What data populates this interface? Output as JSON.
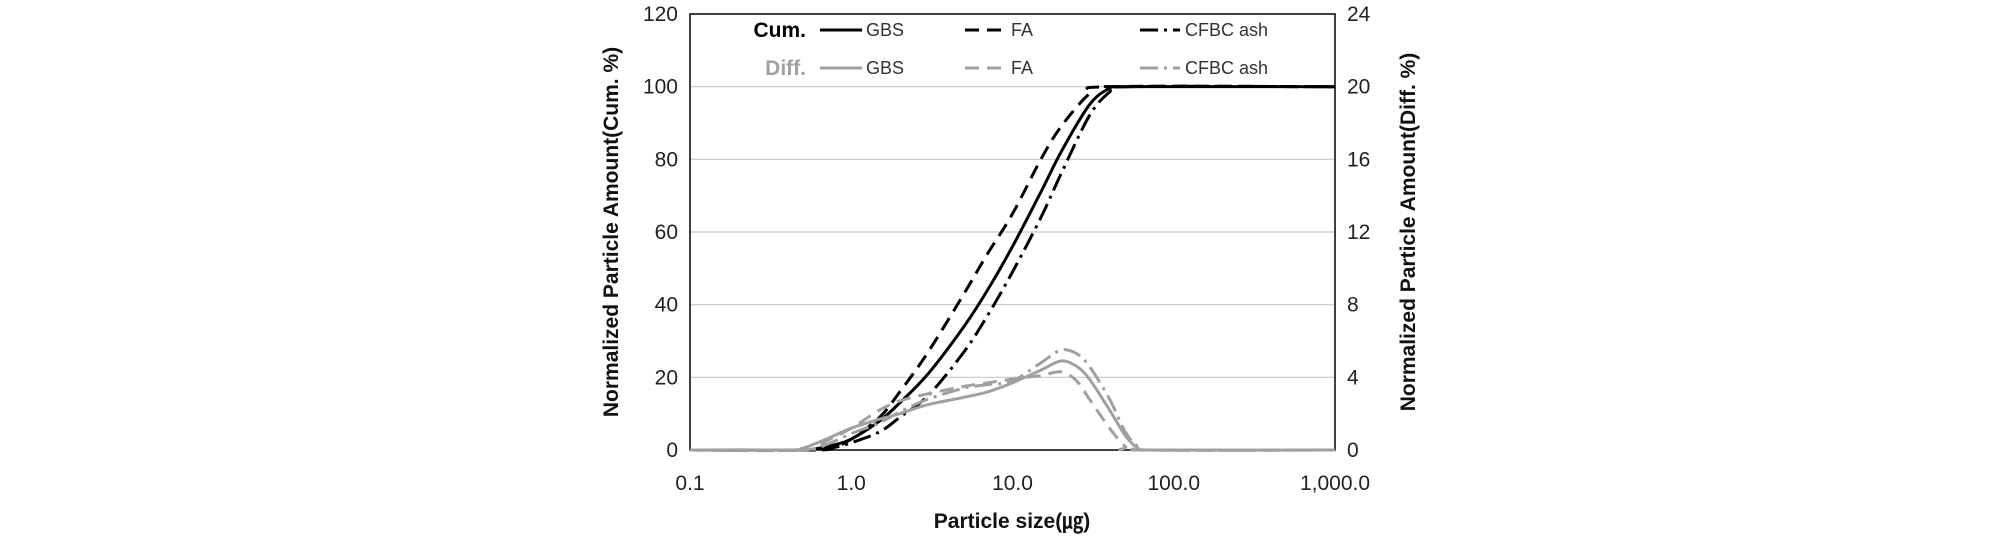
{
  "chart_data": {
    "type": "line",
    "xscale": "log",
    "xlim": [
      0.1,
      1000
    ],
    "x_ticks": [
      0.1,
      1,
      10,
      100,
      1000
    ],
    "x_tick_labels": [
      "0.1",
      "1.0",
      "10.0",
      "100.0",
      "1,000.0"
    ],
    "ylim_left": [
      0,
      120
    ],
    "y_ticks_left": [
      0,
      20,
      40,
      60,
      80,
      100,
      120
    ],
    "y_tick_labels_left": [
      "0",
      "20",
      "40",
      "60",
      "80",
      "100",
      "120"
    ],
    "ylim_right": [
      0,
      24
    ],
    "y_ticks_right": [
      0,
      4,
      8,
      12,
      16,
      20,
      24
    ],
    "y_tick_labels_right": [
      "0",
      "4",
      "8",
      "12",
      "16",
      "20",
      "24"
    ],
    "xlabel": "Particle size(㎍)",
    "ylabel_left": "Normalized Particle Amount(Cum. %)",
    "ylabel_right": "Normalized Particle Amount(Diff. %)",
    "grid": "horizontal",
    "legend": {
      "placement": "top",
      "groups": [
        {
          "heading": "Cum.",
          "color": "#000000",
          "labels": [
            "GBS",
            "FA",
            "CFBC ash"
          ]
        },
        {
          "heading": "Diff.",
          "color": "#a0a0a0",
          "labels": [
            "GBS",
            "FA",
            "CFBC ash"
          ]
        }
      ]
    },
    "series": [
      {
        "name": "GBS",
        "group": "Cum.",
        "axis": "left",
        "color": "#000000",
        "dash": "solid",
        "points": [
          [
            0.1,
            0
          ],
          [
            0.5,
            0
          ],
          [
            0.6,
            0.3
          ],
          [
            0.8,
            1.5
          ],
          [
            1.0,
            3
          ],
          [
            1.5,
            8
          ],
          [
            2.0,
            13
          ],
          [
            3.0,
            21
          ],
          [
            5.0,
            34
          ],
          [
            7.0,
            44
          ],
          [
            10.0,
            56
          ],
          [
            15.0,
            71
          ],
          [
            20.0,
            82
          ],
          [
            30.0,
            95
          ],
          [
            40.0,
            99.5
          ],
          [
            50.0,
            100
          ],
          [
            1000.0,
            100
          ]
        ]
      },
      {
        "name": "FA",
        "group": "Cum.",
        "axis": "left",
        "color": "#000000",
        "dash": "dash",
        "points": [
          [
            0.1,
            0
          ],
          [
            0.5,
            0
          ],
          [
            0.6,
            0.2
          ],
          [
            0.8,
            1
          ],
          [
            1.0,
            3
          ],
          [
            1.5,
            9
          ],
          [
            2.0,
            16
          ],
          [
            3.0,
            27
          ],
          [
            5.0,
            43
          ],
          [
            7.0,
            54
          ],
          [
            10.0,
            65
          ],
          [
            15.0,
            80
          ],
          [
            20.0,
            89
          ],
          [
            30.0,
            98
          ],
          [
            40.0,
            100
          ],
          [
            1000.0,
            100
          ]
        ]
      },
      {
        "name": "CFBC ash",
        "group": "Cum.",
        "axis": "left",
        "color": "#000000",
        "dash": "dashdot",
        "points": [
          [
            0.1,
            0
          ],
          [
            0.6,
            0
          ],
          [
            0.8,
            0.8
          ],
          [
            1.0,
            2
          ],
          [
            1.5,
            5
          ],
          [
            2.0,
            9
          ],
          [
            3.0,
            15
          ],
          [
            5.0,
            27
          ],
          [
            7.0,
            37
          ],
          [
            10.0,
            49
          ],
          [
            15.0,
            64
          ],
          [
            20.0,
            76
          ],
          [
            30.0,
            92
          ],
          [
            40.0,
            98.5
          ],
          [
            50.0,
            100
          ],
          [
            1000.0,
            100
          ]
        ]
      },
      {
        "name": "GBS",
        "group": "Diff.",
        "axis": "right",
        "color": "#a0a0a0",
        "dash": "solid",
        "points": [
          [
            0.1,
            0
          ],
          [
            0.4,
            0
          ],
          [
            0.5,
            0.1
          ],
          [
            0.7,
            0.6
          ],
          [
            1.0,
            1.2
          ],
          [
            1.5,
            1.7
          ],
          [
            2.0,
            2.0
          ],
          [
            3.0,
            2.5
          ],
          [
            5.0,
            2.9
          ],
          [
            7.0,
            3.2
          ],
          [
            10.0,
            3.7
          ],
          [
            15.0,
            4.4
          ],
          [
            20.0,
            4.9
          ],
          [
            25.0,
            4.6
          ],
          [
            30.0,
            3.9
          ],
          [
            40.0,
            2.2
          ],
          [
            50.0,
            0.8
          ],
          [
            60.0,
            0.1
          ],
          [
            70.0,
            0
          ],
          [
            1000.0,
            0
          ]
        ]
      },
      {
        "name": "FA",
        "group": "Diff.",
        "axis": "right",
        "color": "#a0a0a0",
        "dash": "dash",
        "points": [
          [
            0.1,
            0
          ],
          [
            0.5,
            0
          ],
          [
            0.7,
            0.5
          ],
          [
            1.0,
            1.2
          ],
          [
            1.5,
            2.2
          ],
          [
            2.0,
            2.7
          ],
          [
            3.0,
            3.1
          ],
          [
            5.0,
            3.5
          ],
          [
            7.0,
            3.7
          ],
          [
            10.0,
            3.9
          ],
          [
            15.0,
            4.1
          ],
          [
            20.0,
            4.3
          ],
          [
            25.0,
            3.8
          ],
          [
            30.0,
            2.8
          ],
          [
            40.0,
            1.2
          ],
          [
            50.0,
            0.2
          ],
          [
            60.0,
            0
          ],
          [
            1000.0,
            0
          ]
        ]
      },
      {
        "name": "CFBC ash",
        "group": "Diff.",
        "axis": "right",
        "color": "#a0a0a0",
        "dash": "dashdot",
        "points": [
          [
            0.1,
            0
          ],
          [
            0.5,
            0
          ],
          [
            0.7,
            0.3
          ],
          [
            1.0,
            0.9
          ],
          [
            1.5,
            1.5
          ],
          [
            2.0,
            2.1
          ],
          [
            3.0,
            2.8
          ],
          [
            5.0,
            3.4
          ],
          [
            7.0,
            3.6
          ],
          [
            10.0,
            3.8
          ],
          [
            15.0,
            4.8
          ],
          [
            20.0,
            5.5
          ],
          [
            25.0,
            5.3
          ],
          [
            30.0,
            4.6
          ],
          [
            40.0,
            2.8
          ],
          [
            50.0,
            1.0
          ],
          [
            60.0,
            0.2
          ],
          [
            70.0,
            0
          ],
          [
            1000.0,
            0
          ]
        ]
      }
    ]
  }
}
